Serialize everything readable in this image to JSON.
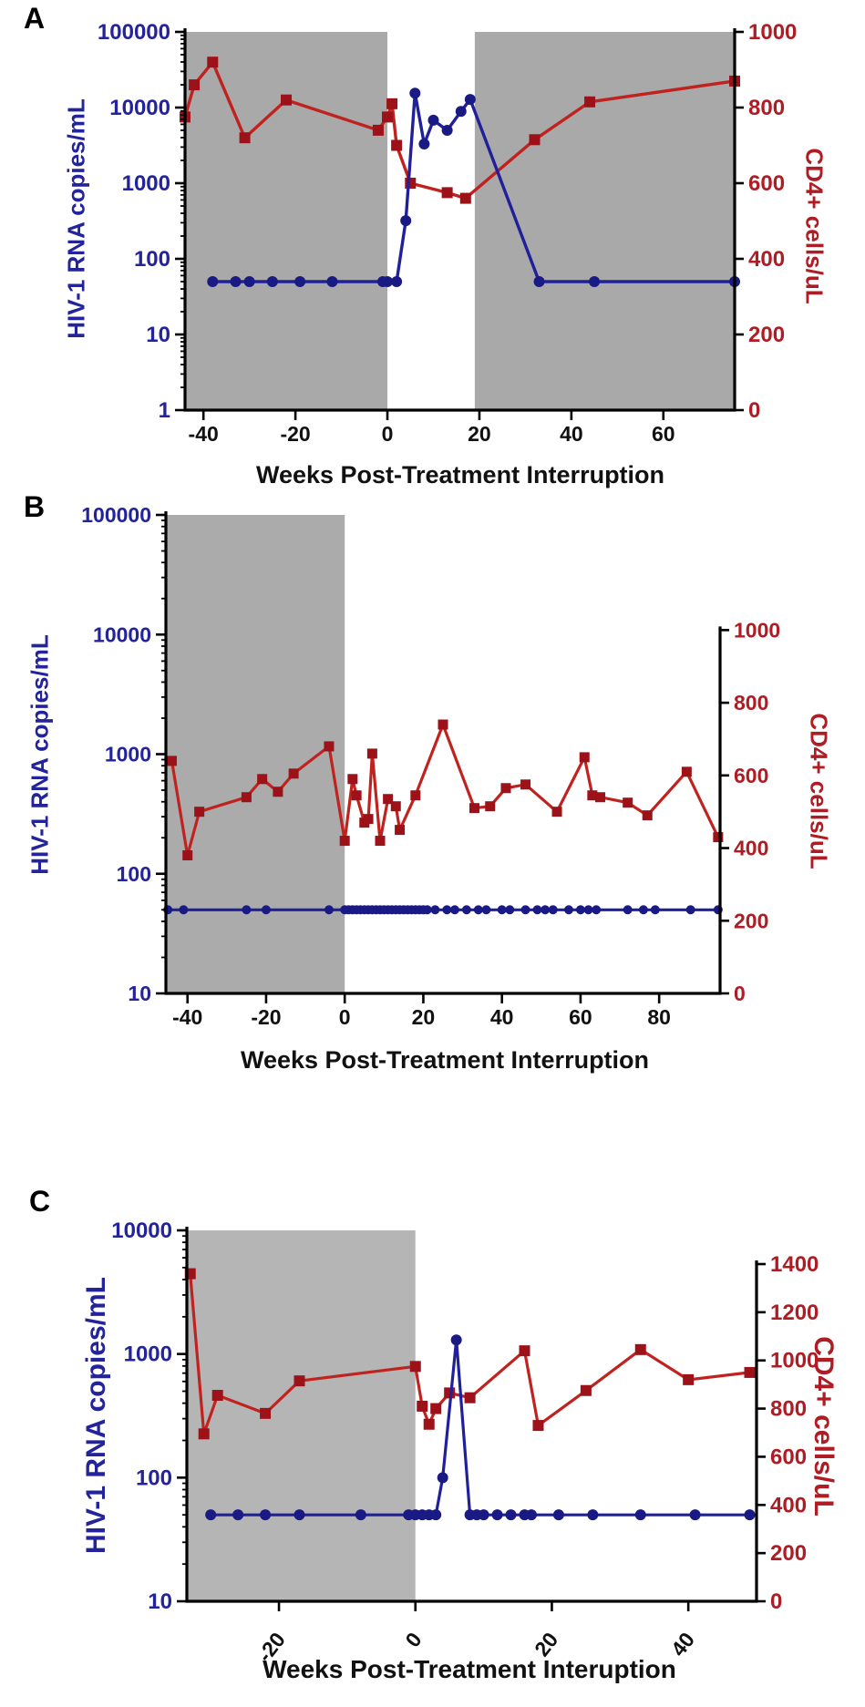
{
  "colors": {
    "blue_line": "#20209a",
    "blue_marker": "#1a1a85",
    "blue_text": "#23239b",
    "red_line": "#c0231f",
    "red_marker": "#9d1118",
    "red_text": "#ae1c24",
    "x_text": "#111111",
    "axis": "#000000"
  },
  "chart_data": [
    {
      "type": "line",
      "panel_label": "A",
      "title_x": "Weeks Post-Treatment Interruption",
      "shade_color": "#a9a9a9",
      "left_axis": {
        "label": "HIV-1 RNA copies/mL",
        "scale": "log",
        "min": 1,
        "max": 100000,
        "tick_values": [
          100000,
          10000,
          1000,
          100,
          10,
          1
        ]
      },
      "right_axis": {
        "label": "CD4+ cells/uL",
        "min": 0,
        "plot_max": 1000,
        "ticks": [
          0,
          200,
          400,
          600,
          800,
          1000
        ]
      },
      "x_axis": {
        "min": -44,
        "max": 75.5,
        "ticks": [
          -40,
          -20,
          0,
          20,
          40,
          60
        ],
        "rotated": false
      },
      "shaded_regions": [
        [
          -44,
          0
        ],
        [
          19,
          75.5
        ]
      ],
      "series": [
        {
          "name": "CD4+ cells/uL",
          "axis": "right",
          "marker": "square",
          "points": [
            [
              -44,
              775
            ],
            [
              -42,
              860
            ],
            [
              -38,
              920
            ],
            [
              -31,
              720
            ],
            [
              -22,
              820
            ],
            [
              -2,
              740
            ],
            [
              0,
              775
            ],
            [
              1,
              810
            ],
            [
              2,
              700
            ],
            [
              5,
              600
            ],
            [
              13,
              575
            ],
            [
              17,
              560
            ],
            [
              32,
              715
            ],
            [
              44,
              815
            ],
            [
              75.5,
              870
            ]
          ]
        },
        {
          "name": "HIV-1 RNA copies/mL",
          "axis": "left",
          "marker": "circle",
          "points": [
            [
              -38,
              50
            ],
            [
              -33,
              50
            ],
            [
              -30,
              50
            ],
            [
              -25,
              50
            ],
            [
              -19,
              50
            ],
            [
              -12,
              50
            ],
            [
              -1,
              50
            ],
            [
              0,
              50
            ],
            [
              2,
              50
            ],
            [
              4,
              320
            ],
            [
              6,
              15500
            ],
            [
              8,
              3300
            ],
            [
              10,
              6800
            ],
            [
              13,
              5000
            ],
            [
              16,
              8900
            ],
            [
              18,
              12800
            ],
            [
              33,
              50
            ],
            [
              45,
              50
            ],
            [
              75.5,
              50
            ]
          ]
        }
      ]
    },
    {
      "type": "line",
      "panel_label": "B",
      "title_x": "Weeks Post-Treatment Interruption",
      "shade_color": "#ababab",
      "left_axis": {
        "label": "HIV-1 RNA copies/mL",
        "scale": "log",
        "min": 10,
        "max": 100000,
        "tick_values": [
          100000,
          10000,
          1000,
          100,
          10
        ]
      },
      "right_axis": {
        "label": "CD4+ cells/uL",
        "min": 0,
        "plot_max": 1317,
        "ticks": [
          0,
          200,
          400,
          600,
          800,
          1000
        ]
      },
      "x_axis": {
        "min": -45.5,
        "max": 95.5,
        "ticks": [
          -40,
          -20,
          0,
          20,
          40,
          60,
          80
        ],
        "rotated": false
      },
      "shaded_regions": [
        [
          -45.5,
          0
        ]
      ],
      "series": [
        {
          "name": "CD4+ cells/uL",
          "axis": "right",
          "marker": "square",
          "points": [
            [
              -44,
              640
            ],
            [
              -40,
              380
            ],
            [
              -37,
              500
            ],
            [
              -25,
              540
            ],
            [
              -21,
              590
            ],
            [
              -17,
              555
            ],
            [
              -13,
              605
            ],
            [
              -4,
              680
            ],
            [
              0,
              420
            ],
            [
              2,
              590
            ],
            [
              3,
              545
            ],
            [
              5,
              470
            ],
            [
              6,
              480
            ],
            [
              7,
              660
            ],
            [
              9,
              420
            ],
            [
              11,
              535
            ],
            [
              13,
              515
            ],
            [
              14,
              450
            ],
            [
              18,
              545
            ],
            [
              25,
              740
            ],
            [
              33,
              510
            ],
            [
              37,
              515
            ],
            [
              41,
              565
            ],
            [
              46,
              575
            ],
            [
              54,
              500
            ],
            [
              61,
              650
            ],
            [
              63,
              545
            ],
            [
              65,
              540
            ],
            [
              72,
              525
            ],
            [
              77,
              490
            ],
            [
              87,
              610
            ],
            [
              95,
              430
            ]
          ]
        },
        {
          "name": "HIV-1 RNA copies/mL",
          "axis": "left",
          "marker": "circle",
          "points": [
            [
              -45,
              50
            ],
            [
              -41,
              50
            ],
            [
              -25,
              50
            ],
            [
              -20,
              50
            ],
            [
              -4,
              50
            ],
            [
              0,
              50
            ],
            [
              1,
              50
            ],
            [
              2,
              50
            ],
            [
              3,
              50
            ],
            [
              4,
              50
            ],
            [
              5,
              50
            ],
            [
              6,
              50
            ],
            [
              7,
              50
            ],
            [
              8,
              50
            ],
            [
              9,
              50
            ],
            [
              10,
              50
            ],
            [
              11,
              50
            ],
            [
              12,
              50
            ],
            [
              13,
              50
            ],
            [
              14,
              50
            ],
            [
              15,
              50
            ],
            [
              16,
              50
            ],
            [
              17,
              50
            ],
            [
              18,
              50
            ],
            [
              19,
              50
            ],
            [
              20,
              50
            ],
            [
              21,
              50
            ],
            [
              23,
              50
            ],
            [
              26,
              50
            ],
            [
              28,
              50
            ],
            [
              31,
              50
            ],
            [
              34,
              50
            ],
            [
              36,
              50
            ],
            [
              40,
              50
            ],
            [
              42,
              50
            ],
            [
              46,
              50
            ],
            [
              49,
              50
            ],
            [
              51,
              50
            ],
            [
              53,
              50
            ],
            [
              57,
              50
            ],
            [
              60,
              50
            ],
            [
              62,
              50
            ],
            [
              64,
              50
            ],
            [
              72,
              50
            ],
            [
              76,
              50
            ],
            [
              79,
              50
            ],
            [
              88,
              50
            ],
            [
              95,
              50
            ]
          ]
        }
      ]
    },
    {
      "type": "line",
      "panel_label": "C",
      "title_x": "Weeks Post-Treatment Interuption",
      "shade_color": "#b5b5b5",
      "left_axis": {
        "label": "HIV-1 RNA copies/mL",
        "scale": "log",
        "min": 10,
        "max": 10000,
        "tick_values": [
          10000,
          1000,
          100,
          10
        ]
      },
      "right_axis": {
        "label": "CD4+ cells/uL",
        "min": 0,
        "plot_max": 1540,
        "ticks": [
          0,
          200,
          400,
          600,
          800,
          1000,
          1200,
          1400
        ]
      },
      "x_axis": {
        "min": -33.5,
        "max": 50,
        "ticks": [
          -20,
          0,
          20,
          40
        ],
        "rotated": true
      },
      "shaded_regions": [
        [
          -33.5,
          0
        ]
      ],
      "series": [
        {
          "name": "CD4+ cells/uL",
          "axis": "right",
          "marker": "square",
          "points": [
            [
              -33,
              1360
            ],
            [
              -31,
              695
            ],
            [
              -29,
              855
            ],
            [
              -22,
              780
            ],
            [
              -17,
              915
            ],
            [
              0,
              975
            ],
            [
              1,
              810
            ],
            [
              2,
              735
            ],
            [
              3,
              800
            ],
            [
              5,
              865
            ],
            [
              8,
              845
            ],
            [
              16,
              1040
            ],
            [
              18,
              730
            ],
            [
              25,
              875
            ],
            [
              33,
              1045
            ],
            [
              40,
              920
            ],
            [
              49,
              950
            ]
          ]
        },
        {
          "name": "HIV-1 RNA copies/mL",
          "axis": "left",
          "marker": "circle",
          "points": [
            [
              -30,
              50
            ],
            [
              -26,
              50
            ],
            [
              -22,
              50
            ],
            [
              -17,
              50
            ],
            [
              -8,
              50
            ],
            [
              -1,
              50
            ],
            [
              0,
              50
            ],
            [
              1,
              50
            ],
            [
              2,
              50
            ],
            [
              3,
              50
            ],
            [
              4,
              100
            ],
            [
              6,
              1300
            ],
            [
              8,
              50
            ],
            [
              9,
              50
            ],
            [
              10,
              50
            ],
            [
              12,
              50
            ],
            [
              14,
              50
            ],
            [
              16,
              50
            ],
            [
              17,
              50
            ],
            [
              21,
              50
            ],
            [
              26,
              50
            ],
            [
              33,
              50
            ],
            [
              41,
              50
            ],
            [
              49,
              50
            ]
          ]
        }
      ]
    }
  ]
}
